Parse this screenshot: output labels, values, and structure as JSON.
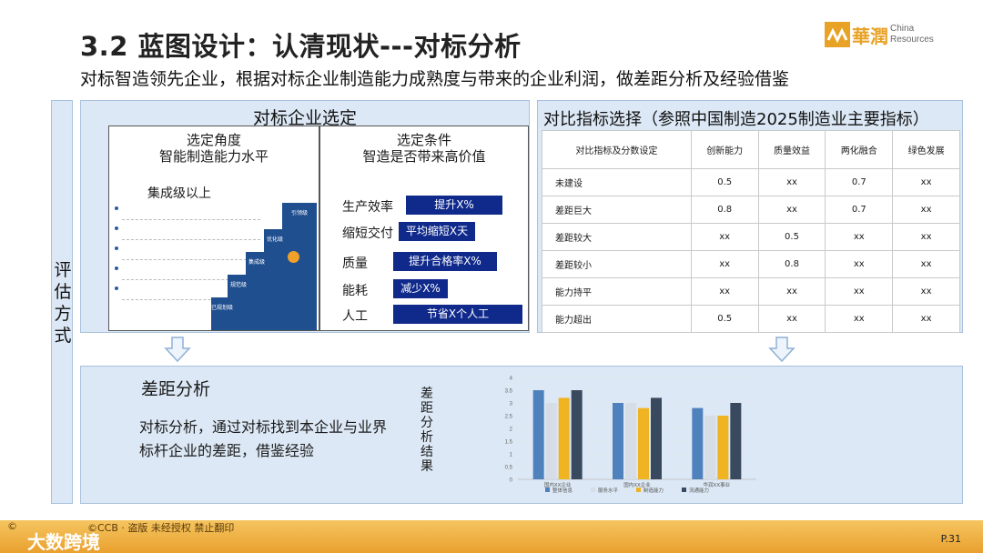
{
  "header": {
    "title": "3.2 蓝图设计：认清现状---对标分析",
    "subtitle": "对标智造领先企业，根据对标企业制造能力成熟度与带来的企业利润，做差距分析及经验借鉴"
  },
  "logo": {
    "cn": "華潤",
    "en_line1": "China",
    "en_line2": "Resources",
    "brand_color": "#e8a225"
  },
  "side": {
    "label": "评估方式"
  },
  "benchmark": {
    "title": "对标企业选定",
    "left_head_line1": "选定角度",
    "left_head_line2": "智能制造能力水平",
    "gate_label": "集成级以上",
    "stairs": [
      "引领级",
      "优化级",
      "集成级",
      "规范级",
      "已规划级"
    ],
    "right_head_line1": "选定条件",
    "right_head_line2": "智造是否带来高价值",
    "conditions": [
      {
        "label": "生产效率",
        "value": "提升X%"
      },
      {
        "label": "缩短交付",
        "value": "平均缩短X天"
      },
      {
        "label": "质量",
        "value": "提升合格率X%"
      },
      {
        "label": "能耗",
        "value": "减少X%"
      },
      {
        "label": "人工",
        "value": "节省X个人工"
      }
    ]
  },
  "indicators": {
    "title": "对比指标选择（参照中国制造2025制造业主要指标）",
    "columns": [
      "对比指标及分数设定",
      "创新能力",
      "质量效益",
      "两化融合",
      "绿色发展"
    ],
    "rows": [
      [
        "未建设",
        "0.5",
        "xx",
        "0.7",
        "xx"
      ],
      [
        "差距巨大",
        "0.8",
        "xx",
        "0.7",
        "xx"
      ],
      [
        "差距较大",
        "xx",
        "0.5",
        "xx",
        "xx"
      ],
      [
        "差距较小",
        "xx",
        "0.8",
        "xx",
        "xx"
      ],
      [
        "能力持平",
        "xx",
        "xx",
        "xx",
        "xx"
      ],
      [
        "能力超出",
        "0.5",
        "xx",
        "xx",
        "xx"
      ]
    ]
  },
  "gap": {
    "title": "差距分析",
    "text": "对标分析，通过对标找到本企业与业界标杆企业的差距，借鉴经验",
    "vertical_label": "差距分析结果"
  },
  "chart_data": {
    "type": "bar",
    "categories": [
      "国内XX企业",
      "国内XX企业",
      "华润XX事业"
    ],
    "series": [
      {
        "name": "整体信息",
        "color": "#4f81bd",
        "values": [
          3.5,
          3.0,
          2.8
        ]
      },
      {
        "name": "服务水平",
        "color": "#d6dde6",
        "values": [
          3.0,
          3.0,
          2.5
        ]
      },
      {
        "name": "制造能力",
        "color": "#f0b321",
        "values": [
          3.2,
          2.8,
          2.5
        ]
      },
      {
        "name": "流通能力",
        "color": "#3a4a5e",
        "values": [
          3.5,
          3.2,
          3.0
        ]
      }
    ],
    "ylim": [
      0,
      4
    ],
    "yticks": [
      "0",
      "0.5",
      "1",
      "1.5",
      "2",
      "2.5",
      "3",
      "3.5",
      "4"
    ],
    "legend": "bottom"
  },
  "footer": {
    "left_mark": "©",
    "brand": "大数跨境",
    "copyright": "©CCB  ·  盗版  未经授权 禁止翻印",
    "page": "P.31"
  }
}
